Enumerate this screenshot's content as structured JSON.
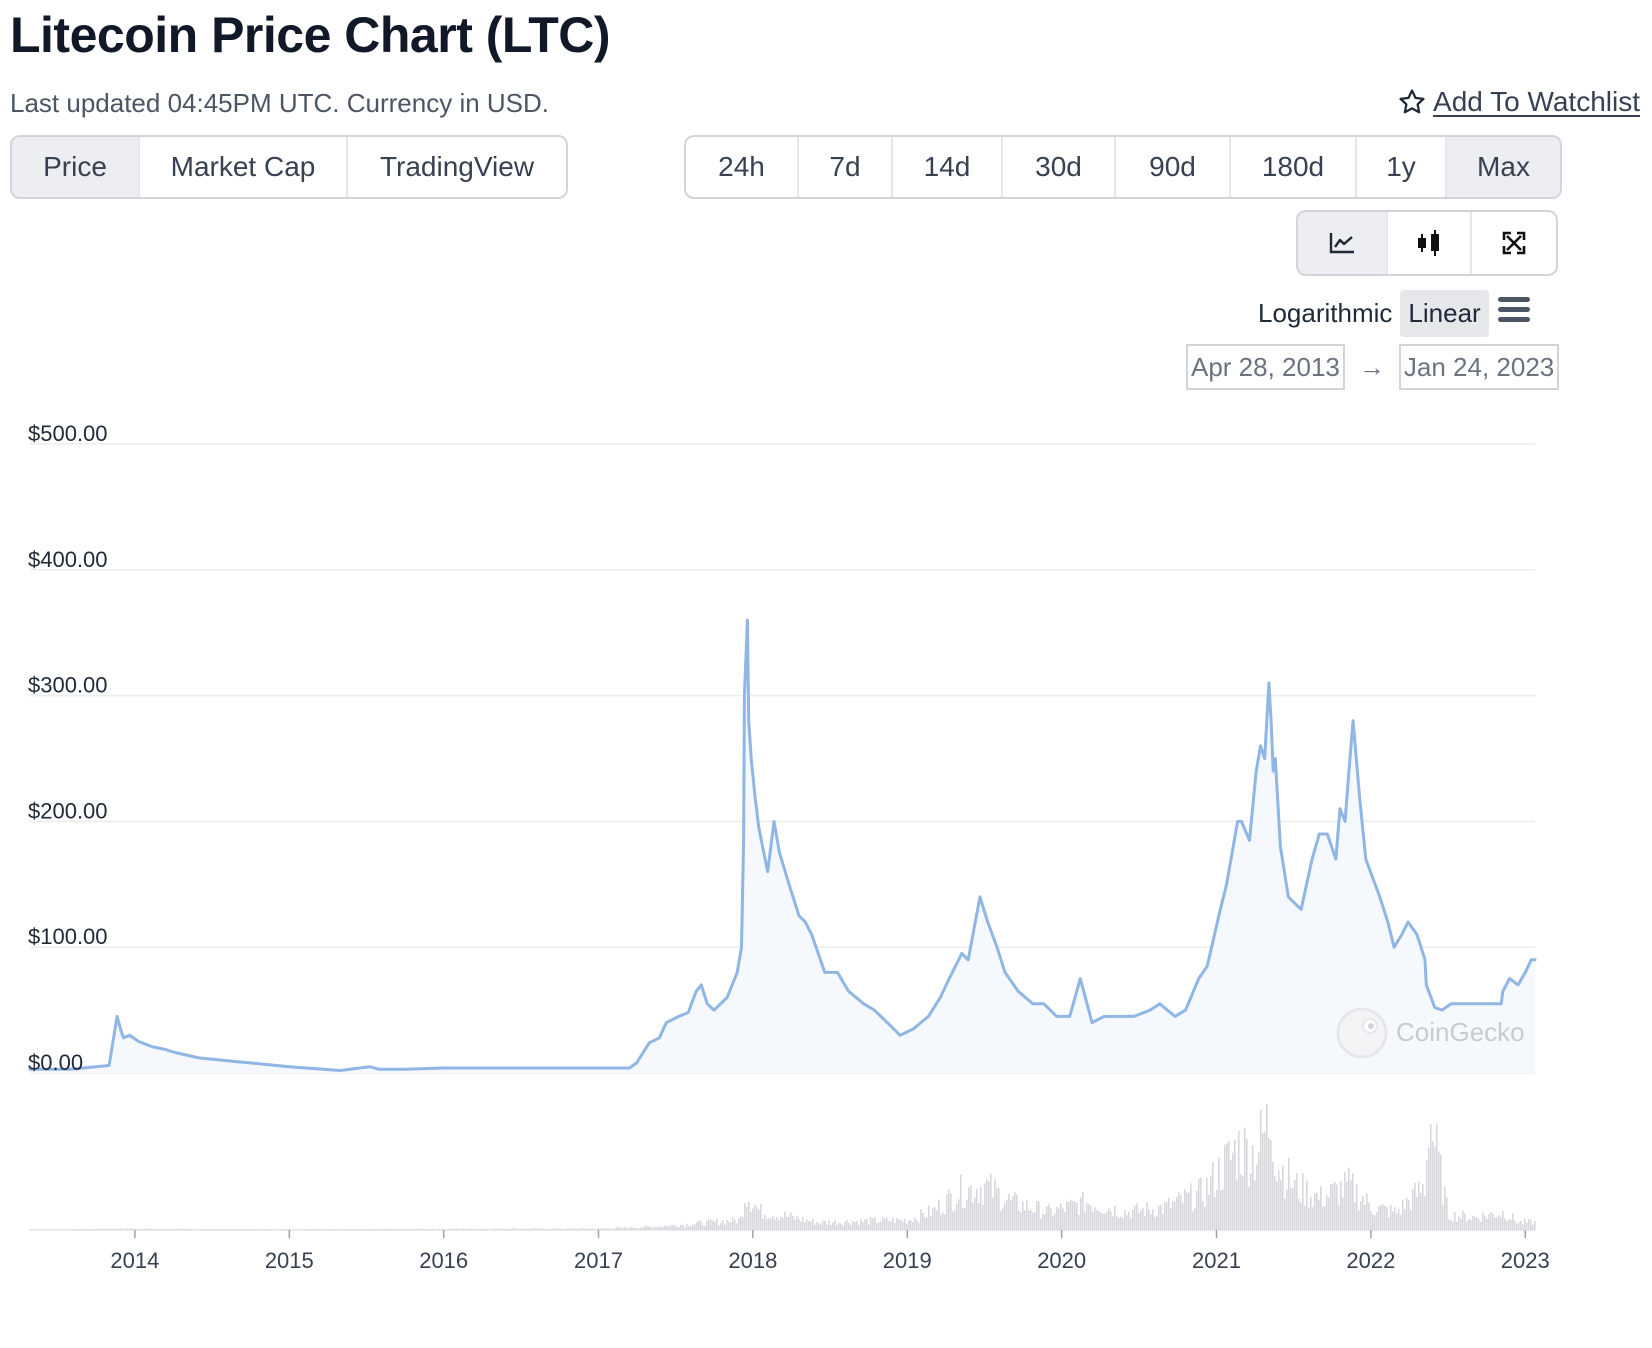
{
  "header": {
    "title": "Litecoin Price Chart (LTC)",
    "subtitle": "Last updated 04:45PM UTC. Currency in USD.",
    "watchlist_label": "Add To Watchlist"
  },
  "chart_tabs": [
    {
      "label": "Price",
      "active": true
    },
    {
      "label": "Market Cap",
      "active": false
    },
    {
      "label": "TradingView",
      "active": false
    }
  ],
  "range_tabs": [
    {
      "label": "24h",
      "active": false
    },
    {
      "label": "7d",
      "active": false
    },
    {
      "label": "14d",
      "active": false
    },
    {
      "label": "30d",
      "active": false
    },
    {
      "label": "90d",
      "active": false
    },
    {
      "label": "180d",
      "active": false
    },
    {
      "label": "1y",
      "active": false
    },
    {
      "label": "Max",
      "active": true
    }
  ],
  "view_buttons": [
    {
      "icon": "line-chart-icon",
      "active": true
    },
    {
      "icon": "candlestick-icon",
      "active": false
    },
    {
      "icon": "fullscreen-icon",
      "active": false
    }
  ],
  "scale": {
    "options": [
      {
        "label": "Logarithmic",
        "active": false
      },
      {
        "label": "Linear",
        "active": true
      }
    ],
    "menu_icon": "hamburger-menu-icon"
  },
  "date_range": {
    "from": "Apr 28, 2013",
    "to": "Jan 24, 2023"
  },
  "watermark": "CoinGecko",
  "colors": {
    "line": "#8fb6e5",
    "area": "#f5f8fc",
    "volume": "#d6d8dd",
    "grid": "#ececec"
  },
  "chart_data": {
    "type": "area",
    "title": "",
    "xlabel": "",
    "ylabel": "",
    "y_ticks": [
      "$500.00",
      "$400.00",
      "$300.00",
      "$200.00",
      "$100.00",
      "$0.00"
    ],
    "x_ticks": [
      "2014",
      "2015",
      "2016",
      "2017",
      "2018",
      "2019",
      "2020",
      "2021",
      "2022",
      "2023"
    ],
    "ylim": [
      0,
      500
    ],
    "xlim": [
      "2013-04-28",
      "2023-01-24"
    ],
    "grid": true,
    "series": [
      {
        "values_type": "price",
        "x": [
          "2013-04-28",
          "2013-08-01",
          "2013-11-01",
          "2013-11-20",
          "2013-11-28",
          "2013-12-05",
          "2013-12-20",
          "2014-01-10",
          "2014-02-10",
          "2014-03-10",
          "2014-04-10",
          "2014-06-01",
          "2014-09-01",
          "2015-01-01",
          "2015-05-01",
          "2015-07-10",
          "2015-08-01",
          "2015-10-01",
          "2016-01-01",
          "2016-06-15",
          "2016-09-01",
          "2017-01-01",
          "2017-03-15",
          "2017-04-01",
          "2017-05-01",
          "2017-05-25",
          "2017-06-10",
          "2017-07-10",
          "2017-08-01",
          "2017-08-20",
          "2017-09-01",
          "2017-09-15",
          "2017-10-01",
          "2017-11-01",
          "2017-11-25",
          "2017-12-05",
          "2017-12-10",
          "2017-12-12",
          "2017-12-19",
          "2017-12-22",
          "2017-12-28",
          "2018-01-06",
          "2018-01-15",
          "2018-02-05",
          "2018-02-20",
          "2018-03-05",
          "2018-04-01",
          "2018-04-20",
          "2018-05-05",
          "2018-05-20",
          "2018-06-20",
          "2018-07-20",
          "2018-08-15",
          "2018-09-20",
          "2018-10-15",
          "2018-11-15",
          "2018-12-15",
          "2019-01-15",
          "2019-02-20",
          "2019-03-20",
          "2019-04-10",
          "2019-05-10",
          "2019-05-25",
          "2019-06-22",
          "2019-07-10",
          "2019-08-01",
          "2019-08-20",
          "2019-09-20",
          "2019-10-25",
          "2019-11-20",
          "2019-12-20",
          "2020-01-20",
          "2020-02-14",
          "2020-03-13",
          "2020-04-10",
          "2020-05-15",
          "2020-06-20",
          "2020-07-28",
          "2020-08-20",
          "2020-09-25",
          "2020-10-20",
          "2020-11-20",
          "2020-12-10",
          "2021-01-10",
          "2021-01-25",
          "2021-02-20",
          "2021-03-01",
          "2021-03-20",
          "2021-04-05",
          "2021-04-15",
          "2021-04-25",
          "2021-05-05",
          "2021-05-10",
          "2021-05-15",
          "2021-05-20",
          "2021-06-01",
          "2021-06-20",
          "2021-07-20",
          "2021-08-15",
          "2021-09-01",
          "2021-09-20",
          "2021-10-10",
          "2021-10-20",
          "2021-11-01",
          "2021-11-10",
          "2021-11-20",
          "2021-12-05",
          "2021-12-20",
          "2022-01-22",
          "2022-02-10",
          "2022-02-25",
          "2022-03-15",
          "2022-03-30",
          "2022-04-20",
          "2022-05-09",
          "2022-05-12",
          "2022-06-01",
          "2022-06-18",
          "2022-07-10",
          "2022-08-10",
          "2022-09-01",
          "2022-10-01",
          "2022-11-05",
          "2022-11-09",
          "2022-11-25",
          "2022-12-15",
          "2023-01-01",
          "2023-01-15",
          "2023-01-24"
        ],
        "values": [
          3,
          3,
          6,
          45,
          35,
          28,
          30,
          25,
          21,
          19,
          16,
          12,
          9,
          5,
          2,
          5,
          3,
          3,
          4,
          4,
          4,
          4,
          4,
          8,
          24,
          28,
          40,
          45,
          48,
          65,
          70,
          55,
          50,
          60,
          80,
          100,
          185,
          300,
          360,
          280,
          250,
          220,
          195,
          160,
          200,
          175,
          145,
          125,
          120,
          110,
          80,
          80,
          65,
          55,
          50,
          40,
          30,
          35,
          45,
          60,
          75,
          95,
          90,
          140,
          120,
          100,
          80,
          65,
          55,
          55,
          45,
          45,
          75,
          40,
          45,
          45,
          45,
          50,
          55,
          45,
          50,
          75,
          85,
          130,
          150,
          200,
          200,
          185,
          240,
          260,
          250,
          310,
          280,
          240,
          250,
          180,
          140,
          130,
          170,
          190,
          190,
          170,
          210,
          200,
          240,
          280,
          220,
          170,
          140,
          120,
          100,
          110,
          120,
          110,
          90,
          70,
          52,
          50,
          55,
          55,
          55,
          55,
          55,
          65,
          75,
          70,
          80,
          90,
          90
        ]
      }
    ],
    "volume": {
      "x": [
        "2013-04-28",
        "2013-11-28",
        "2014-06-01",
        "2015-06-01",
        "2016-06-01",
        "2017-01-01",
        "2017-06-01",
        "2017-12-01",
        "2017-12-12",
        "2018-01-15",
        "2018-06-01",
        "2019-01-01",
        "2019-03-01",
        "2019-05-01",
        "2019-07-01",
        "2019-09-01",
        "2019-12-01",
        "2020-03-01",
        "2020-06-01",
        "2020-09-01",
        "2020-12-01",
        "2021-01-15",
        "2021-02-20",
        "2021-04-01",
        "2021-05-10",
        "2021-05-20",
        "2021-07-01",
        "2021-09-01",
        "2021-11-10",
        "2022-01-01",
        "2022-03-01",
        "2022-05-09",
        "2022-05-15",
        "2022-07-01",
        "2022-09-01",
        "2022-11-09",
        "2022-12-15",
        "2023-01-24"
      ],
      "values": [
        0,
        1,
        0.5,
        0.5,
        1,
        1,
        3,
        8,
        30,
        15,
        6,
        8,
        15,
        30,
        35,
        22,
        14,
        22,
        14,
        18,
        30,
        50,
        65,
        60,
        90,
        55,
        35,
        25,
        35,
        18,
        14,
        35,
        95,
        12,
        10,
        14,
        6,
        6
      ]
    }
  }
}
